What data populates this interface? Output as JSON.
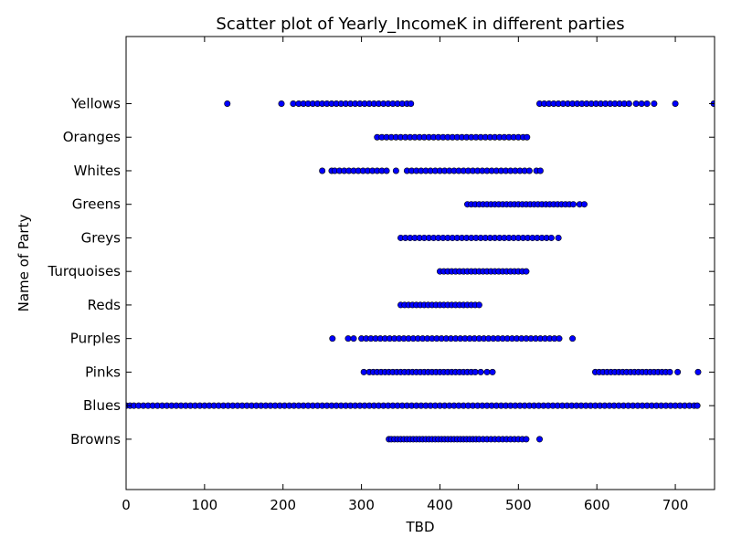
{
  "chart_data": {
    "type": "scatter",
    "title": "Scatter plot of Yearly_IncomeK in different parties",
    "xlabel": "TBD",
    "ylabel": "Name of Party",
    "xlim": [
      0,
      750
    ],
    "ylim": [
      -1.5,
      12
    ],
    "grid": false,
    "legend": "none",
    "xticks": [
      0,
      100,
      200,
      300,
      400,
      500,
      600,
      700
    ],
    "point_color": "#0000ff",
    "categories": [
      "Browns",
      "Blues",
      "Pinks",
      "Purples",
      "Reds",
      "Turquoises",
      "Greys",
      "Greens",
      "Whites",
      "Oranges",
      "Yellows"
    ],
    "groups": [
      {
        "party": "Browns",
        "x": [
          335,
          338,
          342,
          346,
          350,
          354,
          358,
          362,
          366,
          370,
          374,
          378,
          382,
          386,
          390,
          394,
          398,
          402,
          406,
          410,
          414,
          418,
          422,
          426,
          430,
          434,
          438,
          442,
          446,
          450,
          455,
          460,
          465,
          470,
          475,
          480,
          485,
          490,
          495,
          500,
          505,
          510,
          527
        ]
      },
      {
        "party": "Blues",
        "x": [
          0,
          5,
          10,
          16,
          22,
          28,
          34,
          40,
          46,
          52,
          58,
          64,
          70,
          76,
          82,
          88,
          94,
          100,
          106,
          112,
          118,
          124,
          130,
          136,
          142,
          148,
          154,
          160,
          166,
          172,
          178,
          184,
          190,
          196,
          202,
          208,
          214,
          220,
          226,
          232,
          238,
          244,
          250,
          256,
          262,
          268,
          274,
          280,
          286,
          292,
          298,
          304,
          310,
          316,
          322,
          328,
          334,
          340,
          346,
          352,
          358,
          364,
          370,
          376,
          382,
          388,
          394,
          400,
          406,
          412,
          418,
          424,
          430,
          436,
          442,
          448,
          454,
          460,
          466,
          472,
          478,
          484,
          490,
          496,
          502,
          508,
          514,
          520,
          526,
          532,
          538,
          544,
          550,
          556,
          562,
          568,
          574,
          580,
          586,
          592,
          598,
          604,
          610,
          616,
          622,
          628,
          634,
          640,
          646,
          652,
          658,
          664,
          670,
          676,
          682,
          688,
          694,
          700,
          706,
          712,
          718,
          724,
          728
        ]
      },
      {
        "party": "Pinks",
        "x": [
          303,
          310,
          315,
          320,
          325,
          330,
          335,
          340,
          345,
          350,
          355,
          360,
          365,
          370,
          375,
          380,
          385,
          390,
          395,
          400,
          405,
          410,
          415,
          420,
          425,
          430,
          435,
          440,
          445,
          452,
          460,
          467,
          598,
          603,
          608,
          613,
          618,
          623,
          628,
          633,
          638,
          643,
          648,
          653,
          658,
          663,
          668,
          673,
          678,
          683,
          688,
          693,
          703,
          729
        ]
      },
      {
        "party": "Purples",
        "x": [
          263,
          283,
          290,
          300,
          306,
          312,
          318,
          324,
          330,
          336,
          342,
          348,
          354,
          360,
          366,
          372,
          378,
          384,
          390,
          396,
          402,
          408,
          414,
          420,
          426,
          432,
          438,
          444,
          450,
          456,
          462,
          468,
          474,
          480,
          486,
          492,
          498,
          504,
          510,
          516,
          522,
          528,
          534,
          540,
          546,
          552,
          569
        ]
      },
      {
        "party": "Reds",
        "x": [
          350,
          355,
          360,
          365,
          370,
          375,
          380,
          385,
          390,
          395,
          400,
          405,
          410,
          415,
          420,
          425,
          430,
          435,
          440,
          445,
          450
        ]
      },
      {
        "party": "Turquoises",
        "x": [
          400,
          405,
          410,
          415,
          420,
          425,
          430,
          435,
          440,
          445,
          450,
          455,
          460,
          465,
          470,
          475,
          480,
          485,
          490,
          495,
          500,
          505,
          510
        ]
      },
      {
        "party": "Greys",
        "x": [
          350,
          356,
          362,
          368,
          374,
          380,
          386,
          392,
          398,
          404,
          410,
          416,
          422,
          428,
          434,
          440,
          446,
          452,
          458,
          464,
          470,
          476,
          482,
          488,
          494,
          500,
          506,
          512,
          518,
          524,
          530,
          536,
          542,
          551
        ]
      },
      {
        "party": "Greens",
        "x": [
          435,
          440,
          445,
          450,
          455,
          460,
          465,
          470,
          475,
          480,
          485,
          490,
          495,
          500,
          505,
          510,
          515,
          520,
          525,
          530,
          535,
          540,
          545,
          550,
          555,
          560,
          565,
          570,
          578,
          584
        ]
      },
      {
        "party": "Whites",
        "x": [
          250,
          262,
          266,
          272,
          278,
          284,
          290,
          296,
          302,
          308,
          314,
          320,
          326,
          332,
          344,
          358,
          364,
          370,
          376,
          382,
          388,
          394,
          400,
          406,
          412,
          418,
          424,
          430,
          436,
          442,
          448,
          454,
          460,
          466,
          472,
          478,
          484,
          490,
          496,
          502,
          508,
          514,
          523,
          528
        ]
      },
      {
        "party": "Oranges",
        "x": [
          320,
          326,
          332,
          338,
          344,
          350,
          356,
          362,
          368,
          374,
          380,
          386,
          392,
          398,
          404,
          410,
          416,
          422,
          428,
          434,
          440,
          446,
          452,
          458,
          464,
          470,
          476,
          482,
          488,
          494,
          500,
          506,
          511
        ]
      },
      {
        "party": "Yellows",
        "x": [
          129,
          198,
          213,
          220,
          226,
          232,
          238,
          244,
          250,
          256,
          262,
          268,
          274,
          280,
          286,
          292,
          298,
          304,
          310,
          316,
          322,
          328,
          334,
          340,
          346,
          352,
          358,
          363,
          527,
          533,
          539,
          545,
          551,
          557,
          563,
          569,
          575,
          581,
          587,
          593,
          599,
          605,
          611,
          617,
          623,
          629,
          635,
          641,
          650,
          657,
          664,
          673,
          700,
          749
        ]
      }
    ]
  }
}
